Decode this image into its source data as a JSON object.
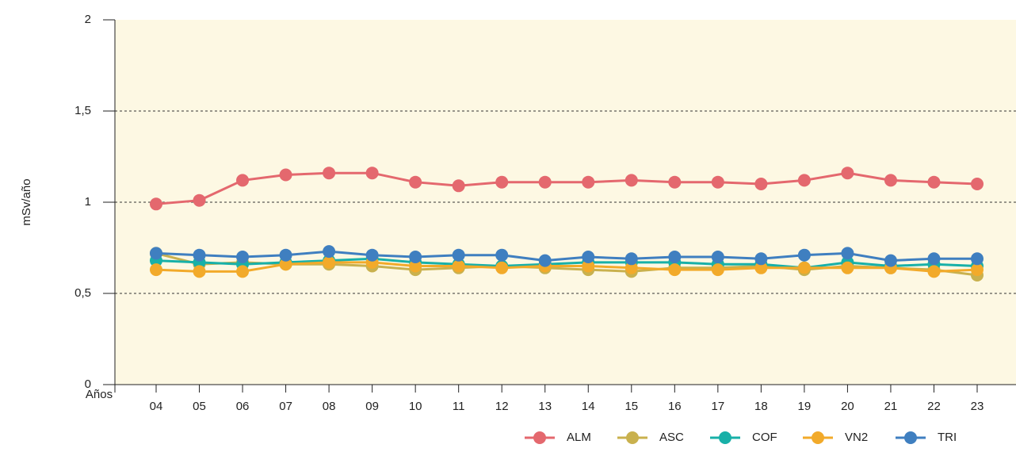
{
  "chart_data": {
    "type": "line",
    "y_label": "mSv/año",
    "x_label": "Años",
    "categories": [
      "04",
      "05",
      "06",
      "07",
      "08",
      "09",
      "10",
      "11",
      "12",
      "13",
      "14",
      "15",
      "16",
      "17",
      "18",
      "19",
      "20",
      "21",
      "22",
      "23"
    ],
    "series": [
      {
        "name": "ALM",
        "color": "#e4686e",
        "values": [
          0.99,
          1.01,
          1.12,
          1.15,
          1.16,
          1.16,
          1.11,
          1.09,
          1.11,
          1.11,
          1.11,
          1.12,
          1.11,
          1.11,
          1.1,
          1.12,
          1.16,
          1.12,
          1.11,
          1.1
        ]
      },
      {
        "name": "ASC",
        "color": "#c9b14e",
        "values": [
          0.72,
          0.66,
          0.67,
          0.66,
          0.66,
          0.65,
          0.63,
          0.64,
          0.65,
          0.64,
          0.63,
          0.62,
          0.64,
          0.64,
          0.65,
          0.63,
          0.65,
          0.64,
          0.63,
          0.6
        ]
      },
      {
        "name": "COF",
        "color": "#18b0a8",
        "values": [
          0.68,
          0.67,
          0.66,
          0.67,
          0.68,
          0.69,
          0.67,
          0.66,
          0.65,
          0.66,
          0.67,
          0.67,
          0.67,
          0.66,
          0.66,
          0.64,
          0.67,
          0.65,
          0.66,
          0.65
        ]
      },
      {
        "name": "VN2",
        "color": "#f2aa2a",
        "values": [
          0.63,
          0.62,
          0.62,
          0.66,
          0.67,
          0.67,
          0.65,
          0.65,
          0.64,
          0.65,
          0.65,
          0.64,
          0.63,
          0.63,
          0.64,
          0.64,
          0.64,
          0.64,
          0.62,
          0.63
        ]
      },
      {
        "name": "TRI",
        "color": "#3f7fc0",
        "values": [
          0.72,
          0.71,
          0.7,
          0.71,
          0.73,
          0.71,
          0.7,
          0.71,
          0.71,
          0.68,
          0.7,
          0.69,
          0.7,
          0.7,
          0.69,
          0.71,
          0.72,
          0.68,
          0.69,
          0.69
        ]
      }
    ],
    "ylim": [
      0,
      2
    ],
    "yticks": [
      0,
      {
        "value": 0.5,
        "label": "0,5"
      },
      1,
      {
        "value": 1.5,
        "label": "1,5"
      },
      2
    ],
    "grid": true,
    "legend": "bottom-right"
  }
}
